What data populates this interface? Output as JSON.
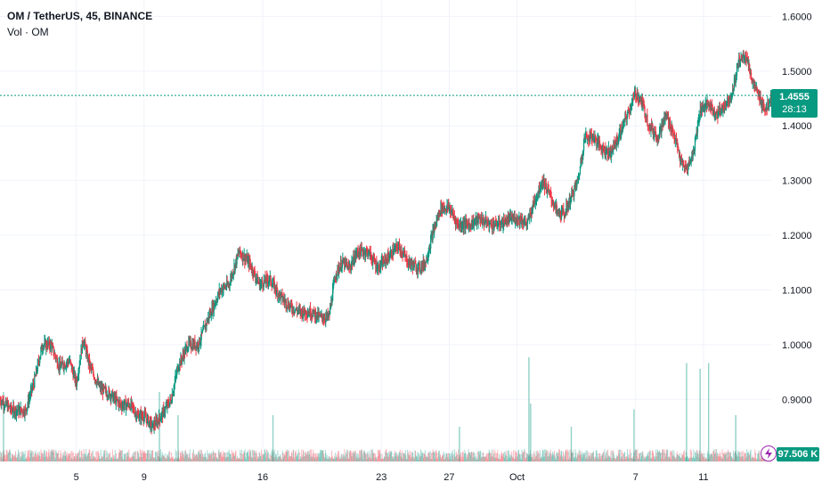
{
  "header": {
    "symbol": "OM / TetherUS, 45, BINANCE",
    "indicator": "Vol · OM"
  },
  "colors": {
    "up": "#089981",
    "down": "#f23645",
    "grid": "#f0f3fa",
    "text": "#131722",
    "flash": "#9c27b0"
  },
  "price_tag": {
    "price": "1.4555",
    "countdown": "28:13"
  },
  "volume_tag": {
    "value": "97.506 K"
  },
  "chart_data": {
    "type": "candlestick",
    "title": "OM / TetherUS, 45, BINANCE",
    "y_axis": {
      "ticks": [
        "1.6000",
        "1.5000",
        "1.4000",
        "1.3000",
        "1.2000",
        "1.1000",
        "1.0000",
        "0.9000",
        "0.8000"
      ],
      "tick_values": [
        1.6,
        1.5,
        1.4,
        1.3,
        1.2,
        1.1,
        1.0,
        0.9,
        0.8
      ],
      "range": [
        0.78,
        1.63
      ]
    },
    "x_axis": {
      "tick_labels": [
        "5",
        "9",
        "16",
        "23",
        "27",
        "Oct",
        "7",
        "11"
      ],
      "tick_positions_days": [
        1,
        5,
        12,
        19,
        23,
        27,
        34,
        38
      ],
      "range_days": [
        -3.5,
        42.0
      ]
    },
    "last_price": 1.4555,
    "price_path": [
      [
        -3.5,
        0.9
      ],
      [
        -2.8,
        0.88
      ],
      [
        -2.0,
        0.88
      ],
      [
        -1.5,
        0.93
      ],
      [
        -1.0,
        1.0
      ],
      [
        -0.5,
        1.0
      ],
      [
        0.0,
        0.96
      ],
      [
        0.6,
        0.97
      ],
      [
        1.0,
        0.93
      ],
      [
        1.4,
        1.01
      ],
      [
        1.8,
        0.96
      ],
      [
        2.4,
        0.92
      ],
      [
        3.0,
        0.91
      ],
      [
        3.6,
        0.89
      ],
      [
        4.2,
        0.89
      ],
      [
        4.6,
        0.87
      ],
      [
        5.0,
        0.87
      ],
      [
        5.5,
        0.85
      ],
      [
        6.0,
        0.87
      ],
      [
        6.6,
        0.9
      ],
      [
        7.0,
        0.96
      ],
      [
        7.6,
        1.0
      ],
      [
        8.2,
        1.0
      ],
      [
        8.8,
        1.05
      ],
      [
        9.5,
        1.1
      ],
      [
        10.0,
        1.11
      ],
      [
        10.6,
        1.17
      ],
      [
        11.2,
        1.15
      ],
      [
        11.8,
        1.11
      ],
      [
        12.4,
        1.12
      ],
      [
        13.0,
        1.09
      ],
      [
        13.6,
        1.07
      ],
      [
        14.2,
        1.06
      ],
      [
        14.8,
        1.06
      ],
      [
        15.4,
        1.05
      ],
      [
        15.9,
        1.05
      ],
      [
        16.3,
        1.13
      ],
      [
        16.7,
        1.15
      ],
      [
        17.1,
        1.14
      ],
      [
        17.6,
        1.17
      ],
      [
        18.2,
        1.17
      ],
      [
        18.8,
        1.14
      ],
      [
        19.4,
        1.16
      ],
      [
        20.0,
        1.18
      ],
      [
        20.6,
        1.15
      ],
      [
        21.2,
        1.14
      ],
      [
        21.6,
        1.15
      ],
      [
        22.0,
        1.2
      ],
      [
        22.5,
        1.25
      ],
      [
        23.0,
        1.25
      ],
      [
        23.5,
        1.22
      ],
      [
        24.2,
        1.22
      ],
      [
        24.8,
        1.23
      ],
      [
        25.4,
        1.22
      ],
      [
        26.0,
        1.22
      ],
      [
        26.6,
        1.23
      ],
      [
        27.2,
        1.23
      ],
      [
        27.6,
        1.22
      ],
      [
        28.0,
        1.26
      ],
      [
        28.5,
        1.3
      ],
      [
        29.0,
        1.27
      ],
      [
        29.4,
        1.24
      ],
      [
        29.8,
        1.24
      ],
      [
        30.2,
        1.27
      ],
      [
        30.6,
        1.3
      ],
      [
        31.0,
        1.38
      ],
      [
        31.5,
        1.38
      ],
      [
        32.0,
        1.36
      ],
      [
        32.5,
        1.35
      ],
      [
        33.0,
        1.38
      ],
      [
        33.5,
        1.42
      ],
      [
        34.0,
        1.46
      ],
      [
        34.4,
        1.44
      ],
      [
        34.8,
        1.4
      ],
      [
        35.3,
        1.38
      ],
      [
        35.8,
        1.42
      ],
      [
        36.3,
        1.38
      ],
      [
        36.7,
        1.33
      ],
      [
        37.0,
        1.32
      ],
      [
        37.4,
        1.35
      ],
      [
        37.8,
        1.43
      ],
      [
        38.3,
        1.44
      ],
      [
        38.8,
        1.42
      ],
      [
        39.3,
        1.44
      ],
      [
        39.7,
        1.46
      ],
      [
        40.1,
        1.52
      ],
      [
        40.5,
        1.53
      ],
      [
        40.9,
        1.48
      ],
      [
        41.3,
        1.45
      ],
      [
        41.7,
        1.43
      ],
      [
        42.0,
        1.455
      ]
    ],
    "volume_spikes": [
      [
        27.7,
        0.9
      ],
      [
        27.8,
        0.5
      ],
      [
        33.9,
        0.45
      ],
      [
        37.0,
        0.85
      ],
      [
        37.8,
        0.8
      ],
      [
        38.3,
        0.85
      ],
      [
        -3.3,
        0.6
      ],
      [
        5.9,
        0.6
      ],
      [
        7.0,
        0.4
      ],
      [
        12.6,
        0.4
      ],
      [
        23.6,
        0.3
      ],
      [
        30.2,
        0.3
      ],
      [
        39.9,
        0.4
      ]
    ]
  }
}
